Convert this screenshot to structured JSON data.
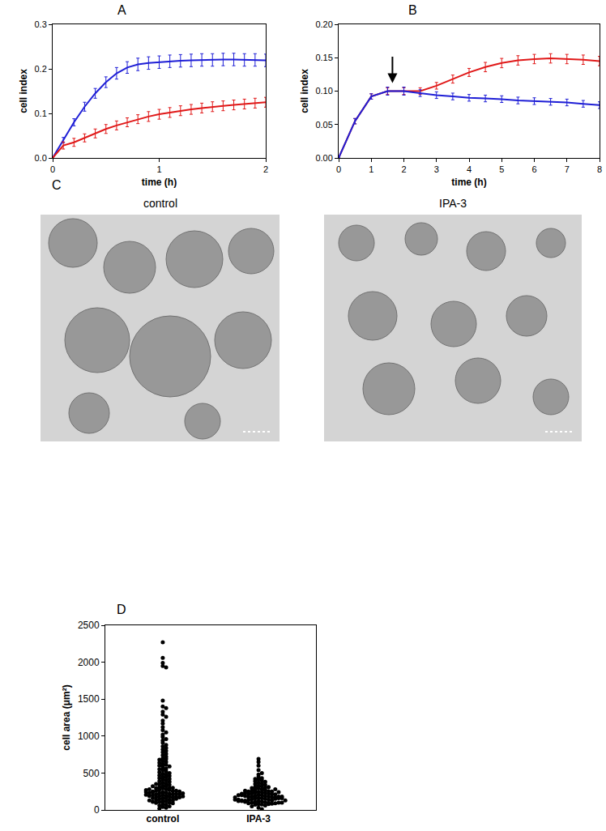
{
  "chart_data": [
    {
      "type": "line",
      "panel": "A",
      "x_label": "time (h)",
      "y_label": "cell index",
      "xlim": [
        0,
        2
      ],
      "xticks": [
        0,
        1,
        2
      ],
      "ylim": [
        0,
        0.3
      ],
      "yticks": [
        {
          "value": 0,
          "label": "0.0"
        },
        0.1,
        0.2,
        0.3
      ],
      "x": [
        0,
        0.1,
        0.2,
        0.3,
        0.4,
        0.5,
        0.6,
        0.7,
        0.8,
        0.9,
        1.0,
        1.1,
        1.2,
        1.3,
        1.4,
        1.5,
        1.6,
        1.7,
        1.8,
        1.9,
        2.0
      ],
      "series": [
        {
          "color": "#1f1fd6",
          "values": [
            0,
            0.04,
            0.08,
            0.115,
            0.145,
            0.17,
            0.19,
            0.203,
            0.21,
            0.213,
            0.215,
            0.217,
            0.218,
            0.219,
            0.22,
            0.22,
            0.221,
            0.221,
            0.22,
            0.22,
            0.219
          ],
          "errors": [
            0.002,
            0.006,
            0.008,
            0.01,
            0.011,
            0.012,
            0.013,
            0.013,
            0.014,
            0.014,
            0.014,
            0.014,
            0.014,
            0.014,
            0.014,
            0.014,
            0.014,
            0.014,
            0.014,
            0.014,
            0.014
          ]
        },
        {
          "color": "#e01818",
          "values": [
            0,
            0.028,
            0.035,
            0.045,
            0.055,
            0.065,
            0.073,
            0.08,
            0.087,
            0.093,
            0.098,
            0.102,
            0.106,
            0.109,
            0.112,
            0.115,
            0.117,
            0.119,
            0.121,
            0.123,
            0.125
          ],
          "errors": [
            0.002,
            0.008,
            0.009,
            0.009,
            0.01,
            0.01,
            0.01,
            0.01,
            0.01,
            0.011,
            0.011,
            0.011,
            0.011,
            0.011,
            0.011,
            0.011,
            0.011,
            0.011,
            0.011,
            0.011,
            0.011
          ]
        }
      ]
    },
    {
      "type": "line",
      "panel": "B",
      "x_label": "time (h)",
      "y_label": "cell index",
      "xlim": [
        0,
        8
      ],
      "xticks": [
        0,
        1,
        2,
        3,
        4,
        5,
        6,
        7,
        8
      ],
      "ylim": [
        0,
        0.2
      ],
      "yticks": [
        {
          "value": 0,
          "label": "0.00"
        },
        0.05,
        {
          "value": 0.1,
          "label": "0.10"
        },
        0.15,
        {
          "value": 0.2,
          "label": "0.20"
        }
      ],
      "arrow": {
        "x": 1.65,
        "y": 0.112
      },
      "x": [
        0,
        0.5,
        1.0,
        1.5,
        2.0,
        2.5,
        3.0,
        3.5,
        4.0,
        4.5,
        5.0,
        5.5,
        6.0,
        6.5,
        7.0,
        7.5,
        8.0
      ],
      "series": [
        {
          "color": "#e01818",
          "values": [
            0,
            0.055,
            0.092,
            0.1,
            0.1,
            0.1,
            0.108,
            0.118,
            0.128,
            0.136,
            0.142,
            0.146,
            0.148,
            0.149,
            0.148,
            0.147,
            0.145
          ],
          "errors": [
            0.001,
            0.004,
            0.004,
            0.005,
            0.005,
            0.005,
            0.005,
            0.006,
            0.006,
            0.007,
            0.007,
            0.007,
            0.007,
            0.007,
            0.007,
            0.007,
            0.007
          ]
        },
        {
          "color": "#1f1fd6",
          "values": [
            0,
            0.055,
            0.092,
            0.1,
            0.1,
            0.097,
            0.094,
            0.092,
            0.09,
            0.089,
            0.088,
            0.086,
            0.085,
            0.084,
            0.083,
            0.081,
            0.079
          ],
          "errors": [
            0.001,
            0.004,
            0.004,
            0.006,
            0.006,
            0.005,
            0.005,
            0.005,
            0.005,
            0.005,
            0.005,
            0.005,
            0.005,
            0.005,
            0.005,
            0.005,
            0.005
          ]
        }
      ]
    },
    {
      "type": "image",
      "panel": "C",
      "labels": [
        "control",
        "IPA-3"
      ]
    },
    {
      "type": "scatter",
      "panel": "D",
      "y_label": "cell area (μm²)",
      "categories": [
        "control",
        "IPA-3"
      ],
      "ylim": [
        0,
        2500
      ],
      "yticks": [
        0,
        500,
        1000,
        1500,
        2000,
        2500
      ],
      "color": "#000000",
      "values": [
        [
          2270,
          2060,
          1990,
          1950,
          1930,
          1480,
          1400,
          1380,
          1330,
          1290,
          1260,
          1210,
          1170,
          1120,
          1080,
          1050,
          1020,
          990,
          960,
          940,
          910,
          880,
          860,
          840,
          820,
          800,
          780,
          760,
          740,
          720,
          700,
          690,
          680,
          660,
          650,
          640,
          620,
          610,
          600,
          590,
          580,
          560,
          550,
          540,
          520,
          510,
          500,
          490,
          480,
          470,
          460,
          450,
          440,
          430,
          420,
          410,
          400,
          390,
          380,
          370,
          360,
          350,
          340,
          330,
          320,
          310,
          300,
          295,
          290,
          280,
          275,
          270,
          260,
          255,
          250,
          240,
          235,
          230,
          220,
          215,
          210,
          200,
          195,
          190,
          180,
          175,
          170,
          160,
          155,
          150,
          140,
          135,
          130,
          120,
          115,
          110,
          100,
          95,
          90,
          80,
          70,
          60,
          50,
          40,
          30,
          20,
          260,
          240,
          220,
          200,
          180,
          160,
          300,
          280,
          250,
          230,
          210,
          190,
          170,
          150,
          130,
          110,
          350,
          320,
          270,
          245,
          225,
          205,
          185
        ],
        [
          690,
          650,
          600,
          540,
          500,
          480,
          450,
          430,
          420,
          410,
          400,
          390,
          380,
          370,
          360,
          350,
          340,
          330,
          320,
          310,
          300,
          295,
          290,
          280,
          275,
          270,
          260,
          255,
          250,
          245,
          240,
          235,
          230,
          225,
          220,
          215,
          210,
          205,
          200,
          195,
          190,
          185,
          180,
          175,
          170,
          165,
          160,
          155,
          150,
          145,
          140,
          135,
          130,
          125,
          120,
          115,
          110,
          105,
          100,
          95,
          90,
          85,
          80,
          75,
          70,
          60,
          50,
          30,
          10,
          250,
          230,
          210,
          190,
          170,
          150,
          130,
          110,
          90,
          220,
          200,
          180,
          160,
          140,
          120,
          100,
          260,
          240,
          200,
          180,
          160,
          140,
          120,
          100,
          80,
          310,
          280,
          170,
          130
        ]
      ]
    }
  ]
}
